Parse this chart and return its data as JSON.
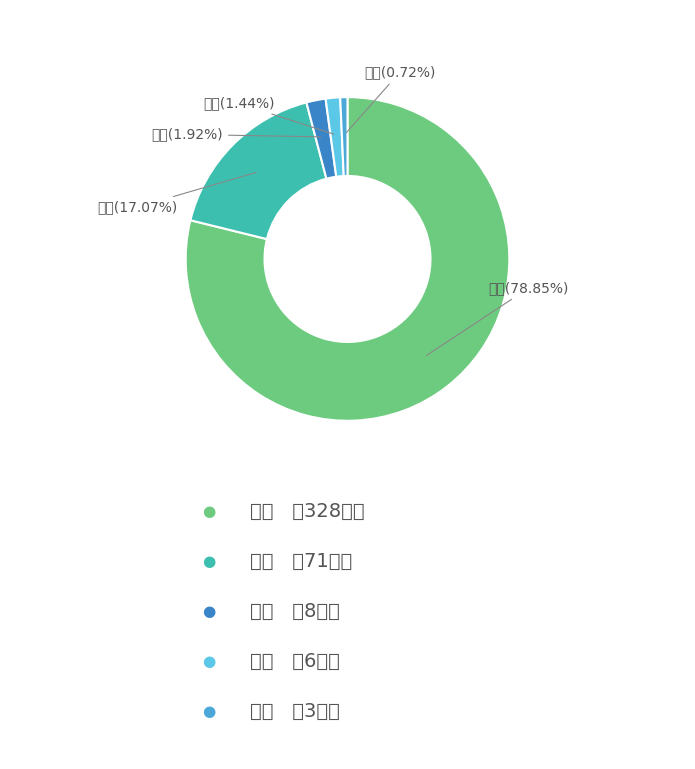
{
  "labels": [
    "一审",
    "二审",
    "其他",
    "再审",
    "执行"
  ],
  "values": [
    328,
    71,
    8,
    6,
    3
  ],
  "percentages": [
    78.85,
    17.07,
    1.92,
    1.44,
    0.72
  ],
  "colors": [
    "#6dcb7f",
    "#3dbfb0",
    "#3a85c8",
    "#5bc8e8",
    "#4ca8d8"
  ],
  "legend_colors": [
    "#6dcb7f",
    "#3dbfb0",
    "#3a85c8",
    "#5bc8e8",
    "#4ca8d8"
  ],
  "counts": [
    328,
    71,
    8,
    6,
    3
  ],
  "background_color": "#ffffff",
  "label_fontsize": 10,
  "legend_fontsize": 14
}
